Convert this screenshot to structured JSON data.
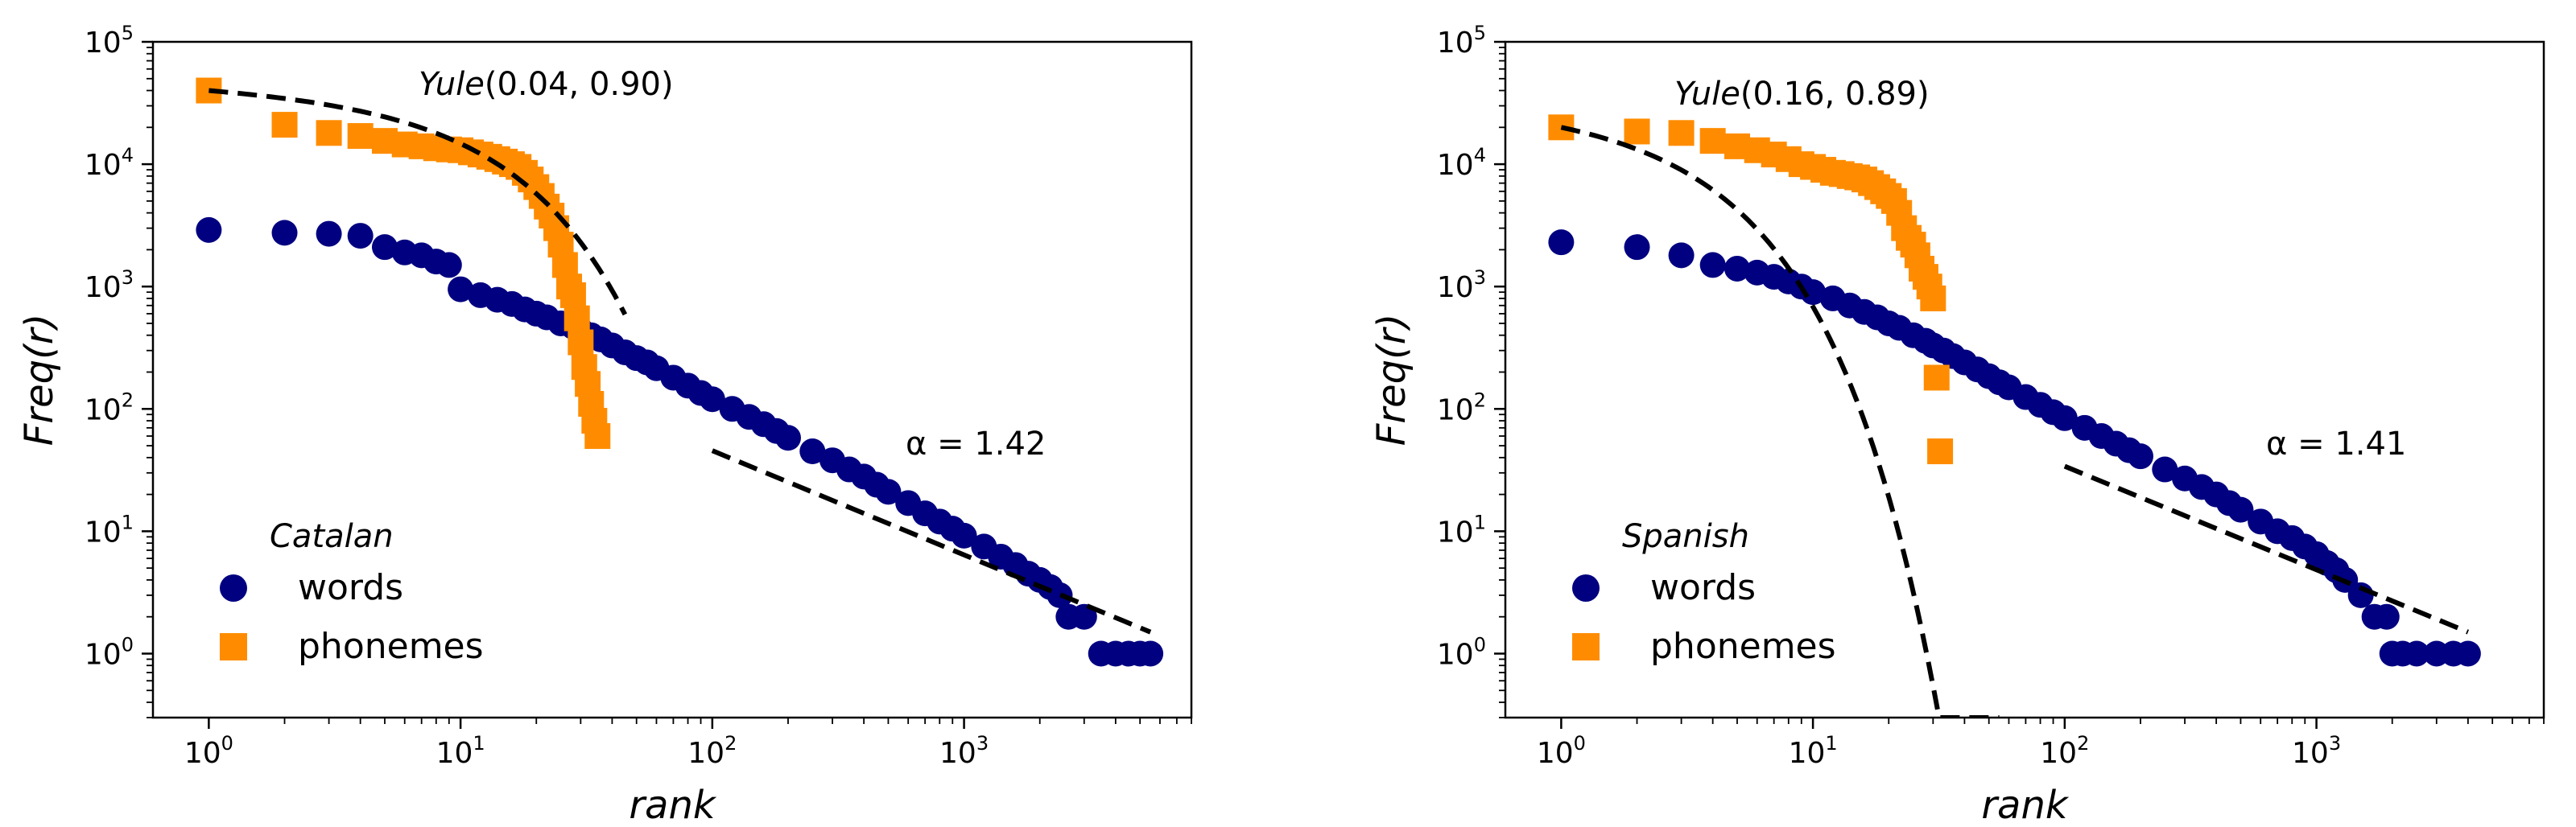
{
  "chart_data": [
    {
      "type": "scatter",
      "xscale": "log",
      "yscale": "log",
      "xlim": [
        0.6,
        8000
      ],
      "ylim": [
        0.3,
        100000
      ],
      "xlabel": "rank",
      "ylabel": "Freq(r)",
      "xticks": [
        {
          "value": 1,
          "base": "10",
          "exp": "0"
        },
        {
          "value": 10,
          "base": "10",
          "exp": "1"
        },
        {
          "value": 100,
          "base": "10",
          "exp": "2"
        },
        {
          "value": 1000,
          "base": "10",
          "exp": "3"
        }
      ],
      "yticks": [
        {
          "value": 1,
          "base": "10",
          "exp": "0"
        },
        {
          "value": 10,
          "base": "10",
          "exp": "1"
        },
        {
          "value": 100,
          "base": "10",
          "exp": "2"
        },
        {
          "value": 1000,
          "base": "10",
          "exp": "3"
        },
        {
          "value": 10000,
          "base": "10",
          "exp": "4"
        },
        {
          "value": 100000,
          "base": "10",
          "exp": "5"
        }
      ],
      "legend": {
        "title": "Catalan",
        "placement": "lower-left",
        "entries": [
          {
            "label": "words",
            "marker": "circle",
            "color": "#000080"
          },
          {
            "label": "phonemes",
            "marker": "square",
            "color": "#ff8c00"
          }
        ]
      },
      "series": [
        {
          "name": "words",
          "marker": "circle",
          "color": "#000080",
          "fit": {
            "type": "power-law",
            "alpha": 1.42,
            "N": 5500
          },
          "x": [
            1,
            2,
            3,
            4,
            5,
            6,
            7,
            8,
            9,
            10,
            12,
            14,
            16,
            18,
            20,
            22,
            25,
            28,
            30,
            33,
            36,
            40,
            45,
            50,
            55,
            60,
            70,
            80,
            90,
            100,
            120,
            140,
            160,
            180,
            200,
            250,
            300,
            350,
            400,
            450,
            500,
            600,
            700,
            800,
            900,
            1000,
            1200,
            1400,
            1600,
            1800,
            2000,
            2200,
            2400,
            2600,
            3000,
            3500,
            4000,
            4500,
            5000,
            5500
          ],
          "values": [
            2900,
            2750,
            2700,
            2600,
            2100,
            1900,
            1800,
            1600,
            1500,
            950,
            850,
            780,
            720,
            650,
            600,
            560,
            500,
            470,
            440,
            400,
            370,
            330,
            290,
            260,
            240,
            215,
            180,
            155,
            135,
            120,
            100,
            86,
            75,
            66,
            58,
            45,
            38,
            32,
            28,
            24,
            21,
            17,
            14,
            12,
            10.5,
            9.2,
            7.5,
            6.2,
            5.3,
            4.5,
            4,
            3.5,
            3,
            2,
            2,
            1,
            1,
            1,
            1,
            1
          ]
        },
        {
          "name": "phonemes",
          "marker": "square",
          "color": "#ff8c00",
          "fit": {
            "type": "yule",
            "label": "Yule(0.04, 0.90)",
            "b": 0.04,
            "c": 0.9,
            "A": 40000,
            "xmax": 45
          },
          "x": [
            1,
            2,
            3,
            4,
            5,
            6,
            7,
            8,
            9,
            10,
            11,
            12,
            13,
            14,
            15,
            16,
            17,
            18,
            19,
            20,
            21,
            22,
            23,
            24,
            25,
            26,
            27,
            28,
            29,
            30,
            31,
            32,
            33,
            34,
            35
          ],
          "values": [
            40000,
            21000,
            18000,
            17000,
            15500,
            14500,
            14000,
            13500,
            13200,
            13000,
            12500,
            12000,
            11500,
            11000,
            10500,
            10000,
            9500,
            8500,
            7500,
            6500,
            5500,
            4500,
            3800,
            3000,
            2200,
            1500,
            1000,
            850,
            550,
            350,
            220,
            160,
            110,
            80,
            60
          ]
        }
      ],
      "annotations": [
        "Yule(0.04, 0.90)",
        "α = 1.42"
      ]
    },
    {
      "type": "scatter",
      "xscale": "log",
      "yscale": "log",
      "xlim": [
        0.6,
        8000
      ],
      "ylim": [
        0.3,
        100000
      ],
      "xlabel": "rank",
      "ylabel": "Freq(r)",
      "xticks": [
        {
          "value": 1,
          "base": "10",
          "exp": "0"
        },
        {
          "value": 10,
          "base": "10",
          "exp": "1"
        },
        {
          "value": 100,
          "base": "10",
          "exp": "2"
        },
        {
          "value": 1000,
          "base": "10",
          "exp": "3"
        }
      ],
      "yticks": [
        {
          "value": 1,
          "base": "10",
          "exp": "0"
        },
        {
          "value": 10,
          "base": "10",
          "exp": "1"
        },
        {
          "value": 100,
          "base": "10",
          "exp": "2"
        },
        {
          "value": 1000,
          "base": "10",
          "exp": "3"
        },
        {
          "value": 10000,
          "base": "10",
          "exp": "4"
        },
        {
          "value": 100000,
          "base": "10",
          "exp": "5"
        }
      ],
      "legend": {
        "title": "Spanish",
        "placement": "lower-left",
        "entries": [
          {
            "label": "words",
            "marker": "circle",
            "color": "#000080"
          },
          {
            "label": "phonemes",
            "marker": "square",
            "color": "#ff8c00"
          }
        ]
      },
      "series": [
        {
          "name": "words",
          "marker": "circle",
          "color": "#000080",
          "fit": {
            "type": "power-law",
            "alpha": 1.41,
            "N": 4000
          },
          "x": [
            1,
            2,
            3,
            4,
            5,
            6,
            7,
            8,
            9,
            10,
            12,
            14,
            16,
            18,
            20,
            22,
            25,
            28,
            30,
            33,
            36,
            40,
            45,
            50,
            55,
            60,
            70,
            80,
            90,
            100,
            120,
            140,
            160,
            180,
            200,
            250,
            300,
            350,
            400,
            450,
            500,
            600,
            700,
            800,
            900,
            1000,
            1100,
            1200,
            1300,
            1500,
            1700,
            1900,
            2000,
            2200,
            2500,
            3000,
            3500,
            4000
          ],
          "values": [
            2300,
            2100,
            1800,
            1500,
            1400,
            1300,
            1200,
            1100,
            1000,
            900,
            800,
            700,
            620,
            560,
            500,
            460,
            400,
            360,
            330,
            300,
            270,
            240,
            210,
            185,
            165,
            150,
            125,
            108,
            94,
            84,
            70,
            60,
            52,
            46,
            41,
            32,
            27,
            23,
            20,
            17,
            15,
            12,
            10,
            8.8,
            7.5,
            6.5,
            5.5,
            4.8,
            4,
            3,
            2,
            2,
            1,
            1,
            1,
            1,
            1,
            1
          ]
        },
        {
          "name": "phonemes",
          "marker": "square",
          "color": "#ff8c00",
          "fit": {
            "type": "yule",
            "label": "Yule(0.16, 0.89)",
            "b": 0.16,
            "c": 0.89,
            "A": 20000,
            "xmax": 55
          },
          "x": [
            1,
            2,
            3,
            4,
            5,
            6,
            7,
            8,
            9,
            10,
            11,
            12,
            13,
            14,
            15,
            16,
            17,
            18,
            19,
            20,
            21,
            22,
            23,
            24,
            25,
            26,
            27,
            28,
            29,
            30,
            31,
            32
          ],
          "values": [
            20000,
            18500,
            18000,
            15500,
            14000,
            13000,
            12000,
            11000,
            10000,
            9500,
            9000,
            8500,
            8300,
            8000,
            7800,
            7500,
            7000,
            6500,
            6000,
            5500,
            5000,
            4000,
            3000,
            2500,
            2200,
            1800,
            1400,
            1200,
            1000,
            800,
            180,
            45
          ]
        }
      ],
      "annotations": [
        "Yule(0.16, 0.89)",
        "α = 1.41"
      ]
    }
  ]
}
